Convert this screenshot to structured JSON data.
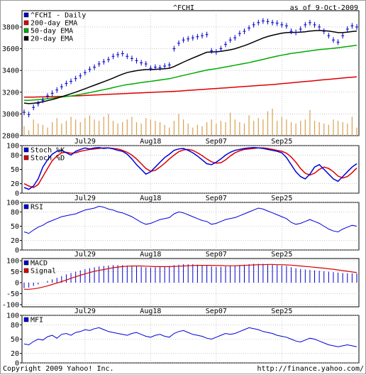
{
  "header": {
    "title": "^FCHI",
    "asof": "as of  9-Oct-2009"
  },
  "footer": {
    "copyright": "Copyright 2009 Yahoo! Inc.",
    "url": "http://finance.yahoo.com/"
  },
  "colors": {
    "price": "#0000cc",
    "ema200": "#dd0000",
    "ema50": "#00aa00",
    "ema20": "#000000",
    "volume": "#d8a050",
    "stochK": "#0000dd",
    "stochD": "#dd0000",
    "rsi": "#0000dd",
    "macd": "#0000cc",
    "signal": "#dd0000",
    "mfi": "#0000dd",
    "grid": "#aaaaaa"
  },
  "chart_data": [
    {
      "type": "line",
      "name": "price",
      "title": "^FCHI",
      "legend": [
        "^FCHI - Daily",
        "200-day EMA",
        "50-day EMA",
        "20-day EMA"
      ],
      "legend_placement": "top-left",
      "x_tick_labels": [
        "Jul29",
        "Aug18",
        "Sep07",
        "Sep25"
      ],
      "x_tick_index": [
        13,
        27,
        41,
        55
      ],
      "ylim": [
        2800,
        3950
      ],
      "y_ticks": [
        2800,
        3000,
        3200,
        3400,
        3600,
        3800
      ],
      "grid": true,
      "series": [
        {
          "name": "^FCHI - Daily",
          "values": [
            3015,
            2995,
            3060,
            3095,
            3125,
            3165,
            3190,
            3220,
            3250,
            3280,
            3300,
            3325,
            3350,
            3380,
            3410,
            3430,
            3460,
            3480,
            3500,
            3530,
            3545,
            3555,
            3530,
            3510,
            3490,
            3470,
            3460,
            3420,
            3430,
            3425,
            3440,
            3450,
            3600,
            3650,
            3680,
            3690,
            3700,
            3710,
            3720,
            3730,
            3580,
            3570,
            3600,
            3640,
            3680,
            3700,
            3740,
            3760,
            3790,
            3820,
            3840,
            3855,
            3850,
            3840,
            3835,
            3820,
            3810,
            3760,
            3750,
            3780,
            3820,
            3840,
            3820,
            3800,
            3760,
            3720,
            3680,
            3660,
            3720,
            3780,
            3810,
            3800
          ]
        },
        {
          "name": "200-day EMA",
          "values": [
            3155,
            3155,
            3155,
            3156,
            3157,
            3158,
            3159,
            3160,
            3161,
            3162,
            3164,
            3166,
            3168,
            3170,
            3172,
            3174,
            3176,
            3178,
            3180,
            3182,
            3184,
            3186,
            3188,
            3190,
            3192,
            3194,
            3196,
            3198,
            3200,
            3202,
            3204,
            3206,
            3208,
            3210,
            3213,
            3216,
            3219,
            3222,
            3225,
            3228,
            3231,
            3234,
            3237,
            3240,
            3243,
            3246,
            3249,
            3252,
            3255,
            3258,
            3261,
            3264,
            3267,
            3270,
            3274,
            3278,
            3282,
            3286,
            3290,
            3294,
            3298,
            3302,
            3306,
            3310,
            3314,
            3318,
            3322,
            3326,
            3330,
            3334,
            3338,
            3342
          ]
        },
        {
          "name": "50-day EMA",
          "values": [
            3125,
            3125,
            3128,
            3132,
            3136,
            3140,
            3145,
            3150,
            3155,
            3160,
            3165,
            3172,
            3180,
            3188,
            3196,
            3205,
            3214,
            3223,
            3232,
            3242,
            3252,
            3262,
            3270,
            3276,
            3282,
            3288,
            3294,
            3300,
            3306,
            3312,
            3318,
            3324,
            3334,
            3344,
            3354,
            3364,
            3374,
            3384,
            3394,
            3404,
            3410,
            3416,
            3424,
            3432,
            3440,
            3448,
            3456,
            3464,
            3472,
            3482,
            3492,
            3502,
            3512,
            3522,
            3532,
            3540,
            3548,
            3556,
            3562,
            3568,
            3574,
            3580,
            3586,
            3592,
            3596,
            3600,
            3604,
            3608,
            3614,
            3620,
            3626,
            3632
          ]
        },
        {
          "name": "20-day EMA",
          "values": [
            3100,
            3095,
            3098,
            3104,
            3112,
            3122,
            3132,
            3144,
            3158,
            3172,
            3186,
            3200,
            3216,
            3232,
            3248,
            3264,
            3280,
            3296,
            3312,
            3330,
            3348,
            3366,
            3380,
            3390,
            3398,
            3404,
            3408,
            3408,
            3410,
            3412,
            3416,
            3420,
            3436,
            3456,
            3476,
            3496,
            3514,
            3532,
            3550,
            3568,
            3570,
            3572,
            3576,
            3582,
            3590,
            3600,
            3614,
            3628,
            3644,
            3662,
            3680,
            3698,
            3712,
            3724,
            3734,
            3742,
            3748,
            3750,
            3750,
            3752,
            3756,
            3762,
            3766,
            3768,
            3766,
            3762,
            3756,
            3748,
            3748,
            3752,
            3758,
            3762
          ]
        }
      ],
      "volume": [
        0.35,
        0.2,
        0.6,
        0.45,
        0.4,
        0.3,
        0.5,
        0.65,
        0.45,
        0.55,
        0.7,
        0.6,
        0.5,
        0.65,
        0.75,
        0.6,
        0.55,
        0.7,
        0.8,
        0.55,
        0.45,
        0.5,
        0.6,
        0.7,
        0.5,
        0.45,
        0.65,
        0.6,
        0.55,
        0.5,
        0.4,
        0.3,
        0.55,
        0.8,
        0.6,
        0.45,
        0.3,
        0.4,
        0.35,
        0.5,
        0.6,
        0.45,
        0.55,
        0.5,
        0.85,
        0.6,
        0.5,
        0.45,
        0.75,
        0.55,
        0.65,
        0.6,
        0.9,
        1.0,
        0.55,
        0.7,
        0.6,
        0.5,
        0.45,
        0.55,
        0.6,
        0.95,
        0.55,
        0.5,
        0.45,
        0.4,
        0.6,
        0.55,
        0.5,
        0.45,
        0.7,
        0.3
      ]
    },
    {
      "type": "line",
      "name": "stochastic",
      "legend": [
        "Stoch %K",
        "Stoch %D"
      ],
      "legend_placement": "top-left",
      "ylim": [
        0,
        100
      ],
      "y_ticks": [
        0,
        20,
        50,
        80,
        100
      ],
      "grid": true,
      "series": [
        {
          "name": "Stoch %K",
          "values": [
            12,
            8,
            15,
            30,
            55,
            70,
            82,
            88,
            90,
            85,
            80,
            88,
            92,
            95,
            93,
            95,
            96,
            94,
            95,
            93,
            90,
            88,
            82,
            72,
            60,
            50,
            40,
            45,
            55,
            65,
            75,
            82,
            90,
            93,
            94,
            90,
            85,
            78,
            70,
            62,
            60,
            65,
            72,
            80,
            86,
            90,
            92,
            94,
            95,
            96,
            95,
            94,
            92,
            90,
            88,
            85,
            75,
            60,
            45,
            35,
            30,
            40,
            55,
            60,
            50,
            40,
            30,
            25,
            35,
            45,
            55,
            62
          ]
        },
        {
          "name": "Stoch %D",
          "values": [
            20,
            15,
            12,
            18,
            35,
            52,
            68,
            78,
            85,
            86,
            84,
            85,
            88,
            90,
            92,
            93,
            94,
            95,
            95,
            94,
            93,
            90,
            86,
            80,
            72,
            62,
            52,
            46,
            48,
            55,
            63,
            72,
            80,
            87,
            91,
            92,
            90,
            85,
            79,
            72,
            66,
            63,
            64,
            70,
            78,
            85,
            89,
            92,
            93,
            94,
            95,
            95,
            94,
            92,
            90,
            88,
            84,
            76,
            65,
            52,
            42,
            38,
            42,
            50,
            55,
            52,
            45,
            36,
            32,
            35,
            43,
            53
          ]
        }
      ]
    },
    {
      "type": "line",
      "name": "rsi",
      "legend": [
        "RSI"
      ],
      "legend_placement": "top-left",
      "ylim": [
        0,
        100
      ],
      "y_ticks": [
        0,
        20,
        50,
        80,
        100
      ],
      "grid": true,
      "series": [
        {
          "name": "RSI",
          "values": [
            38,
            35,
            42,
            48,
            52,
            58,
            62,
            66,
            70,
            72,
            74,
            76,
            80,
            84,
            86,
            88,
            92,
            90,
            86,
            84,
            80,
            78,
            74,
            70,
            64,
            58,
            54,
            56,
            60,
            64,
            66,
            68,
            76,
            80,
            78,
            74,
            70,
            66,
            62,
            60,
            54,
            56,
            60,
            64,
            66,
            68,
            72,
            76,
            80,
            84,
            88,
            86,
            82,
            78,
            74,
            70,
            66,
            58,
            54,
            56,
            60,
            64,
            60,
            56,
            50,
            44,
            40,
            38,
            44,
            48,
            52,
            50
          ]
        }
      ]
    },
    {
      "type": "bar",
      "name": "macd",
      "legend": [
        "MACD",
        "Signal"
      ],
      "legend_placement": "top-left",
      "ylim": [
        -110,
        110
      ],
      "y_ticks": [
        -100,
        -50,
        0,
        50,
        100
      ],
      "grid": true,
      "series": [
        {
          "name": "MACD",
          "values": [
            -25,
            -22,
            -15,
            -8,
            0,
            8,
            15,
            22,
            30,
            38,
            44,
            50,
            56,
            62,
            66,
            70,
            74,
            76,
            78,
            80,
            80,
            80,
            78,
            76,
            74,
            72,
            70,
            68,
            70,
            72,
            74,
            76,
            80,
            82,
            84,
            84,
            84,
            82,
            80,
            78,
            74,
            72,
            72,
            74,
            76,
            78,
            80,
            82,
            84,
            86,
            86,
            86,
            84,
            82,
            80,
            78,
            76,
            70,
            66,
            62,
            60,
            58,
            56,
            54,
            52,
            50,
            48,
            46,
            44,
            43,
            42,
            42
          ]
        },
        {
          "name": "Signal",
          "values": [
            -30,
            -30,
            -28,
            -25,
            -20,
            -15,
            -8,
            -2,
            5,
            12,
            20,
            27,
            34,
            40,
            46,
            52,
            56,
            60,
            64,
            68,
            71,
            73,
            75,
            76,
            76,
            76,
            75,
            74,
            73,
            73,
            73,
            73,
            74,
            75,
            76,
            77,
            78,
            79,
            79,
            79,
            79,
            78,
            78,
            77,
            77,
            77,
            78,
            79,
            80,
            81,
            82,
            82,
            83,
            83,
            82,
            82,
            81,
            80,
            78,
            76,
            74,
            72,
            70,
            68,
            66,
            63,
            61,
            58,
            55,
            52,
            49,
            46
          ]
        }
      ]
    },
    {
      "type": "line",
      "name": "mfi",
      "legend": [
        "MFI"
      ],
      "legend_placement": "top-left",
      "ylim": [
        0,
        100
      ],
      "y_ticks": [
        0,
        20,
        50,
        80,
        100
      ],
      "grid": true,
      "series": [
        {
          "name": "MFI",
          "values": [
            40,
            38,
            45,
            50,
            48,
            55,
            58,
            52,
            60,
            62,
            58,
            64,
            66,
            70,
            68,
            72,
            74,
            70,
            66,
            64,
            62,
            60,
            58,
            62,
            64,
            60,
            56,
            54,
            58,
            60,
            56,
            54,
            62,
            66,
            68,
            64,
            60,
            58,
            56,
            52,
            50,
            54,
            58,
            62,
            60,
            62,
            66,
            70,
            74,
            72,
            70,
            66,
            64,
            62,
            58,
            56,
            54,
            50,
            46,
            44,
            48,
            52,
            50,
            46,
            42,
            38,
            36,
            34,
            36,
            38,
            36,
            34
          ]
        }
      ]
    }
  ]
}
